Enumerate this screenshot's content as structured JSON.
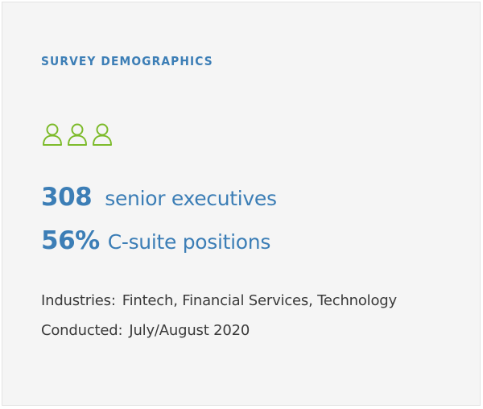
{
  "heading": "SURVEY DEMOGRAPHICS",
  "icons": {
    "name": "person-outline-icon",
    "count": 3,
    "color": "#7dbb2b"
  },
  "stats": [
    {
      "number": "308",
      "label": "senior executives"
    },
    {
      "number": "56%",
      "label": "C-suite positions"
    }
  ],
  "details": [
    {
      "label": "Industries:",
      "value": "Fintech, Financial Services, Technology"
    },
    {
      "label": "Conducted:",
      "value": "July/August 2020"
    }
  ],
  "colors": {
    "accent": "#3c7eb6",
    "icon": "#7dbb2b",
    "text": "#3a3a3a",
    "background": "#f5f5f5"
  }
}
